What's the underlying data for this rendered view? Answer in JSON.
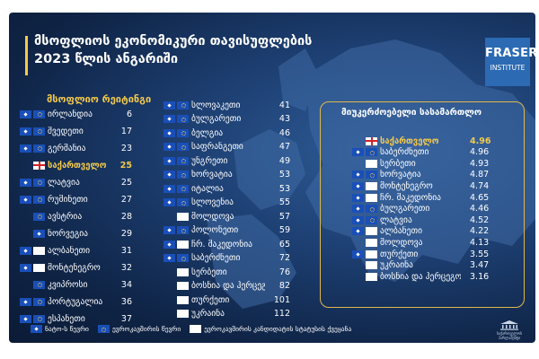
{
  "title": {
    "line1": "მსოფლიოს ეკონომიკური თავისუფლების",
    "line2": "2023 წლის ანგარიში"
  },
  "logo": {
    "name": "FRASER",
    "subtitle": "INSTITUTE"
  },
  "world_ranking_heading": "მსოფლიო რეიტინგი",
  "column1": [
    {
      "flags": [
        "nato",
        "eu"
      ],
      "name": "ირლანდია",
      "value": "6"
    },
    {
      "flags": [
        "nato",
        "eu"
      ],
      "name": "შვედეთი",
      "value": "17"
    },
    {
      "flags": [
        "nato",
        "eu"
      ],
      "name": "გერმანია",
      "value": "23"
    },
    {
      "flags": [
        "geo"
      ],
      "name": "საქართველო",
      "value": "25",
      "highlight": true
    },
    {
      "flags": [
        "nato",
        "eu"
      ],
      "name": "ლატვია",
      "value": "25"
    },
    {
      "flags": [
        "nato",
        "eu"
      ],
      "name": "რუმინეთი",
      "value": "27"
    },
    {
      "flags": [
        "eu"
      ],
      "name": "ავსტრია",
      "value": "28"
    },
    {
      "flags": [
        "nato"
      ],
      "name": "ნორვეგია",
      "value": "29"
    },
    {
      "flags": [
        "nato",
        "cand"
      ],
      "name": "ალბანეთი",
      "value": "31"
    },
    {
      "flags": [
        "nato",
        "cand"
      ],
      "name": "მონტენეგრო",
      "value": "32"
    },
    {
      "flags": [
        "eu"
      ],
      "name": "კვიპროსი",
      "value": "34"
    },
    {
      "flags": [
        "nato",
        "eu"
      ],
      "name": "პორტუგალია",
      "value": "36"
    },
    {
      "flags": [
        "nato",
        "eu"
      ],
      "name": "ესპანეთი",
      "value": "37"
    }
  ],
  "column2": [
    {
      "flags": [
        "nato",
        "eu"
      ],
      "name": "სლოვაკეთი",
      "value": "41"
    },
    {
      "flags": [
        "nato",
        "eu"
      ],
      "name": "ბულგარეთი",
      "value": "43"
    },
    {
      "flags": [
        "nato",
        "eu"
      ],
      "name": "ბელგია",
      "value": "46"
    },
    {
      "flags": [
        "nato",
        "eu"
      ],
      "name": "საფრანგეთი",
      "value": "47"
    },
    {
      "flags": [
        "nato",
        "eu"
      ],
      "name": "უნგრეთი",
      "value": "49"
    },
    {
      "flags": [
        "nato",
        "eu"
      ],
      "name": "ხორვატია",
      "value": "53"
    },
    {
      "flags": [
        "nato",
        "eu"
      ],
      "name": "იტალია",
      "value": "53"
    },
    {
      "flags": [
        "nato",
        "eu"
      ],
      "name": "სლოვენია",
      "value": "55"
    },
    {
      "flags": [
        "cand"
      ],
      "name": "მოლდოვა",
      "value": "57"
    },
    {
      "flags": [
        "nato",
        "eu"
      ],
      "name": "პოლონეთი",
      "value": "59"
    },
    {
      "flags": [
        "nato",
        "cand"
      ],
      "name": "ჩრ. მაკედონია",
      "value": "65"
    },
    {
      "flags": [
        "nato",
        "eu"
      ],
      "name": "საბერძნეთი",
      "value": "72"
    },
    {
      "flags": [
        "cand"
      ],
      "name": "სერბეთი",
      "value": "76"
    },
    {
      "flags": [
        "cand"
      ],
      "name": "ბოსნია და ჰერცეგოვინა",
      "value": "82"
    },
    {
      "flags": [
        "cand"
      ],
      "name": "თურქეთი",
      "value": "101"
    },
    {
      "flags": [
        "cand"
      ],
      "name": "უკრაინა",
      "value": "112"
    }
  ],
  "judicial_heading": "მიუკერძოებელი სასამართლო",
  "judicial": [
    {
      "flags": [
        "geo"
      ],
      "name": "საქართველო",
      "value": "4.96",
      "highlight": true
    },
    {
      "flags": [
        "nato",
        "eu"
      ],
      "name": "საბერძნეთი",
      "value": "4.96"
    },
    {
      "flags": [
        "cand"
      ],
      "name": "სერბეთი",
      "value": "4.93"
    },
    {
      "flags": [
        "nato",
        "eu"
      ],
      "name": "ხორვატია",
      "value": "4.87"
    },
    {
      "flags": [
        "nato",
        "cand"
      ],
      "name": "მონტენეგრო",
      "value": "4.74"
    },
    {
      "flags": [
        "nato",
        "cand"
      ],
      "name": "ჩრ. მაკედონია",
      "value": "4.65"
    },
    {
      "flags": [
        "nato",
        "eu"
      ],
      "name": "ბულგარეთი",
      "value": "4.46"
    },
    {
      "flags": [
        "nato",
        "eu"
      ],
      "name": "ლატვია",
      "value": "4.52"
    },
    {
      "flags": [
        "nato",
        "cand"
      ],
      "name": "ალბანეთი",
      "value": "4.22"
    },
    {
      "flags": [
        "cand"
      ],
      "name": "მოლდოვა",
      "value": "4.13"
    },
    {
      "flags": [
        "nato",
        "cand"
      ],
      "name": "თურქეთი",
      "value": "3.55"
    },
    {
      "flags": [
        "cand"
      ],
      "name": "უკრაინა",
      "value": "3.47"
    },
    {
      "flags": [
        "cand"
      ],
      "name": "ბოსნია და ჰერცეგოვინა",
      "value": "3.16"
    }
  ],
  "legend": {
    "nato": "ნატო-ს წევრი",
    "eu": "ევროკავშირის წევრი",
    "cand": "ევროკავშირის კანდიდატის სტატუსის ქვეყანა"
  },
  "parliament_caption": "საქართველოს პარლამენტი",
  "colors": {
    "accent": "#f3c94b",
    "background": "#1d3f72",
    "georgia_red": "#d2232a",
    "logo_blue": "#2c6ab3"
  }
}
